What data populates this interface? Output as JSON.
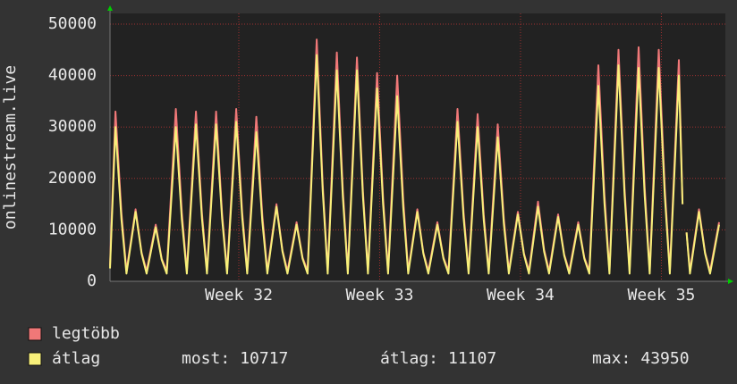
{
  "chart_data": {
    "type": "line",
    "ylabel": "onlinestream.live",
    "x": [
      0,
      0.27,
      0.57,
      0.82,
      1.27,
      1.57,
      1.82,
      2.27,
      2.57,
      2.82,
      3.27,
      3.57,
      3.82,
      4.27,
      4.57,
      4.82,
      5.27,
      5.57,
      5.82,
      6.27,
      6.57,
      6.82,
      7.27,
      7.57,
      7.82,
      8.27,
      8.57,
      8.82,
      9.27,
      9.57,
      9.82,
      10.27,
      10.57,
      10.82,
      11.27,
      11.57,
      11.82,
      12.27,
      12.57,
      12.82,
      13.27,
      13.57,
      13.82,
      14.27,
      14.57,
      14.82,
      15.27,
      15.57,
      15.82,
      16.27,
      16.57,
      16.82,
      17.27,
      17.57,
      17.82,
      18.27,
      18.57,
      18.82,
      19.27,
      19.57,
      19.82,
      20.27,
      20.57,
      20.82,
      21.27,
      21.57,
      21.82,
      22.27,
      22.57,
      22.82,
      23.27,
      23.57,
      23.82,
      24.27,
      24.57,
      24.82,
      25.27,
      25.57,
      25.82,
      26.27,
      26.57,
      26.82,
      27.27,
      27.57,
      27.82,
      28.27,
      28.45,
      28.57,
      28.65,
      28.82,
      29.27,
      29.57,
      29.82,
      30.27
    ],
    "series": [
      {
        "name": "legtöbb",
        "color": "#f07878",
        "values": [
          3000,
          33000,
          13200,
          2000,
          14000,
          5600,
          2000,
          11000,
          4400,
          2000,
          33500,
          13400,
          2000,
          33000,
          13200,
          2000,
          33000,
          13200,
          2000,
          33500,
          13400,
          2000,
          32000,
          12800,
          2000,
          15000,
          6000,
          2000,
          11500,
          4600,
          2000,
          47000,
          18800,
          2000,
          44500,
          17800,
          2000,
          43500,
          17400,
          2000,
          40500,
          16200,
          2000,
          40000,
          16000,
          2000,
          14000,
          5600,
          2000,
          11500,
          4600,
          2000,
          33500,
          13400,
          2000,
          32500,
          13000,
          2000,
          30500,
          12200,
          2000,
          13500,
          5400,
          2000,
          15500,
          6200,
          2000,
          13000,
          5200,
          2000,
          11500,
          4600,
          2000,
          42000,
          16800,
          2000,
          45000,
          18000,
          2000,
          45500,
          18200,
          2000,
          45000,
          18000,
          2000,
          43000,
          15000,
          null,
          9500,
          2000,
          14000,
          5600,
          2000,
          11500
        ]
      },
      {
        "name": "átlag",
        "color": "#f8f07a",
        "values": [
          2500,
          30000,
          12000,
          1500,
          13500,
          5400,
          1500,
          10500,
          4200,
          1500,
          30000,
          12000,
          1500,
          30500,
          12200,
          1500,
          30500,
          12200,
          1500,
          31000,
          12400,
          1500,
          29000,
          11600,
          1500,
          14500,
          5800,
          1500,
          11000,
          4400,
          1500,
          44000,
          17600,
          1500,
          41000,
          16400,
          1500,
          41000,
          16400,
          1500,
          37500,
          15000,
          1500,
          36000,
          14400,
          1500,
          13500,
          5400,
          1500,
          11000,
          4400,
          1500,
          31000,
          12400,
          1500,
          30000,
          12000,
          1500,
          28000,
          11200,
          1500,
          13000,
          5200,
          1500,
          14500,
          5800,
          1500,
          12500,
          5000,
          1500,
          11000,
          4400,
          1500,
          38000,
          15200,
          1500,
          42000,
          16800,
          1500,
          41500,
          16600,
          1500,
          41500,
          16600,
          1500,
          40000,
          15000,
          null,
          9500,
          1500,
          13500,
          5400,
          1500,
          11000
        ]
      }
    ],
    "xlim": [
      0,
      30.58
    ],
    "xticks": [
      {
        "value": 6.4,
        "label": "Week 32"
      },
      {
        "value": 13.4,
        "label": "Week 33"
      },
      {
        "value": 20.4,
        "label": "Week 34"
      },
      {
        "value": 27.4,
        "label": "Week 35"
      }
    ],
    "ylim": [
      0,
      50000
    ],
    "yticks": [
      0,
      10000,
      20000,
      30000,
      40000,
      50000
    ],
    "grid": true,
    "stats": [
      {
        "label": "most:",
        "value": 10717
      },
      {
        "label": "átlag:",
        "value": 11107
      },
      {
        "label": "max:",
        "value": 43950
      }
    ]
  }
}
